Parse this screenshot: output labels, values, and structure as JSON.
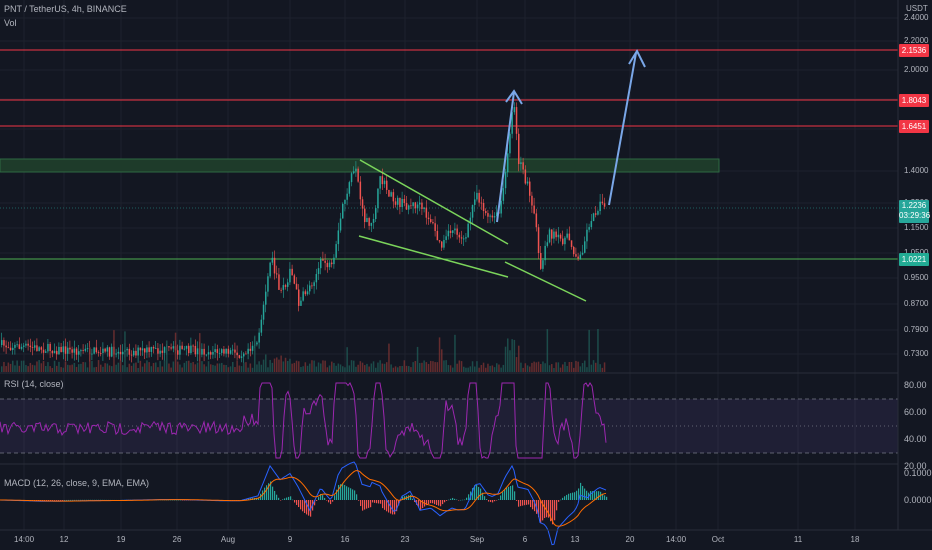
{
  "header": {
    "symbol": "PNT / TetherUS, 4h, BINANCE",
    "volume_label": "Vol",
    "currency": "USDT"
  },
  "price_axis": {
    "ticks": [
      "2.4000",
      "2.2000",
      "2.0000",
      "1.8000",
      "1.6000",
      "1.4000",
      "1.2500",
      "1.1500",
      "1.0500",
      "0.9500",
      "0.8700",
      "0.7900",
      "0.7300"
    ]
  },
  "price_tags": [
    {
      "label": "2.1536",
      "color": "#f23645",
      "value": 2.1536
    },
    {
      "label": "1.8043",
      "color": "#f23645",
      "value": 1.8043
    },
    {
      "label": "1.6451",
      "color": "#f23645",
      "value": 1.6451
    },
    {
      "label": "1.0221",
      "color": "#22ab94",
      "value": 1.0221
    }
  ],
  "current_price": {
    "price": "1.2236",
    "countdown": "03:29:36",
    "color": "#26a69a"
  },
  "rsi": {
    "label": "RSI (14, close)",
    "ticks": [
      "80.00",
      "60.00",
      "40.00",
      "20.00"
    ],
    "upper": 70,
    "lower": 30,
    "line_color": "#9c27b0"
  },
  "macd": {
    "label": "MACD (12, 26, close, 9, EMA, EMA)",
    "ticks": [
      "0.1000",
      "0.0000"
    ]
  },
  "time_axis": {
    "labels": [
      "14:00",
      "12",
      "19",
      "26",
      "Aug",
      "9",
      "16",
      "23",
      "Sep",
      "6",
      "13",
      "20",
      "14:00",
      "Oct",
      "11",
      "18"
    ]
  },
  "colors": {
    "up": "#26a69a",
    "down": "#ef5350",
    "resistance": "#f23645",
    "support": "#4caf50",
    "zone": "#1e3b2a",
    "arrow": "#7aa7e8",
    "wedge": "#7bd45b"
  }
}
